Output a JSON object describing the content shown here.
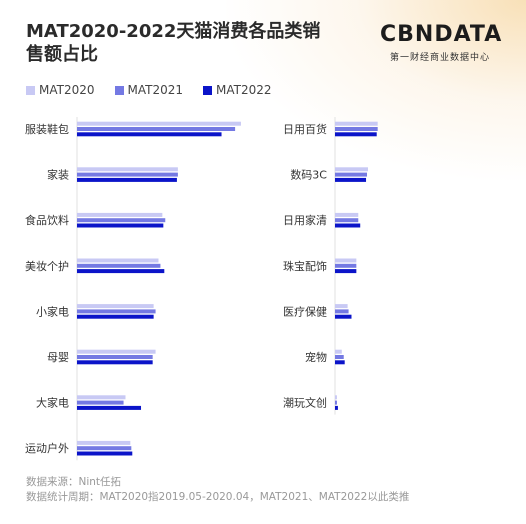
{
  "title": "MAT2020-2022天猫消费各品类销售额占比",
  "brand": {
    "name": "CBNDATA",
    "subtitle": "第一财经商业数据中心"
  },
  "colors": {
    "MAT2020": "#c8c9f4",
    "MAT2021": "#7479e3",
    "MAT2022": "#0b14c9"
  },
  "chart_data": {
    "type": "bar",
    "orientation": "horizontal",
    "legend_position": "top-left",
    "grid": false,
    "series_names": [
      "MAT2020",
      "MAT2021",
      "MAT2022"
    ],
    "panels": [
      {
        "categories": [
          "服装鞋包",
          "家装",
          "食品饮料",
          "美妆个护",
          "小家电",
          "母婴",
          "大家电",
          "运动户外"
        ],
        "series": [
          {
            "name": "MAT2020",
            "values": [
              16.9,
              10.4,
              8.8,
              8.4,
              7.9,
              8.1,
              5.0,
              5.5
            ]
          },
          {
            "name": "MAT2021",
            "values": [
              16.3,
              10.4,
              9.1,
              8.6,
              8.1,
              7.8,
              4.8,
              5.6
            ]
          },
          {
            "name": "MAT2022",
            "values": [
              14.9,
              10.3,
              8.9,
              9.0,
              7.9,
              7.8,
              6.6,
              5.7
            ]
          }
        ]
      },
      {
        "categories": [
          "日用百货",
          "数码3C",
          "日用家清",
          "珠宝配饰",
          "医疗保健",
          "宠物",
          "潮玩文创"
        ],
        "series": [
          {
            "name": "MAT2020",
            "values": [
              4.4,
              3.4,
              2.4,
              2.2,
              1.3,
              0.7,
              0.2
            ]
          },
          {
            "name": "MAT2021",
            "values": [
              4.4,
              3.3,
              2.4,
              2.2,
              1.4,
              0.9,
              0.2
            ]
          },
          {
            "name": "MAT2022",
            "values": [
              4.3,
              3.2,
              2.6,
              2.2,
              1.7,
              1.0,
              0.3
            ]
          }
        ]
      }
    ]
  },
  "footer": {
    "source": "数据来源：Nint任拓",
    "period": "数据统计周期：MAT2020指2019.05-2020.04，MAT2021、MAT2022以此类推"
  }
}
